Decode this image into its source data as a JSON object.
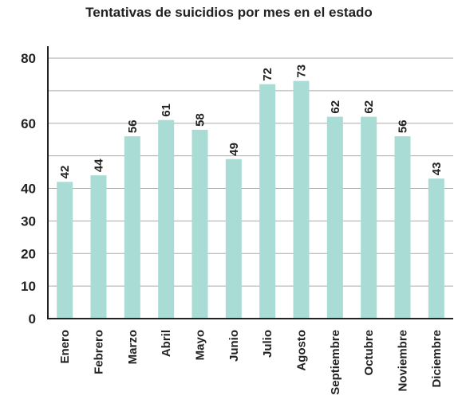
{
  "chart_data": {
    "type": "bar",
    "title": "Tentativas de suicidios por mes en el estado",
    "xlabel": "",
    "ylabel": "",
    "categories": [
      "Enero",
      "Febrero",
      "Marzo",
      "Abril",
      "Mayo",
      "Junio",
      "Julio",
      "Agosto",
      "Septiembre",
      "Octubre",
      "Noviembre",
      "Diciembre"
    ],
    "values": [
      42,
      44,
      56,
      61,
      58,
      49,
      72,
      73,
      62,
      62,
      56,
      43
    ],
    "ylim": [
      0,
      80
    ],
    "yticks": [
      "0",
      "10",
      "20",
      "30",
      "40",
      "50",
      "60",
      "70",
      "80"
    ],
    "ytick_labels_shown": [
      "0",
      "10",
      "20",
      "30",
      "40",
      "60",
      "80"
    ],
    "grid": true,
    "legend": "none",
    "bar_color": "#a8dcd4",
    "grid_color": "#aaaaaa",
    "axis_color": "#222222"
  }
}
